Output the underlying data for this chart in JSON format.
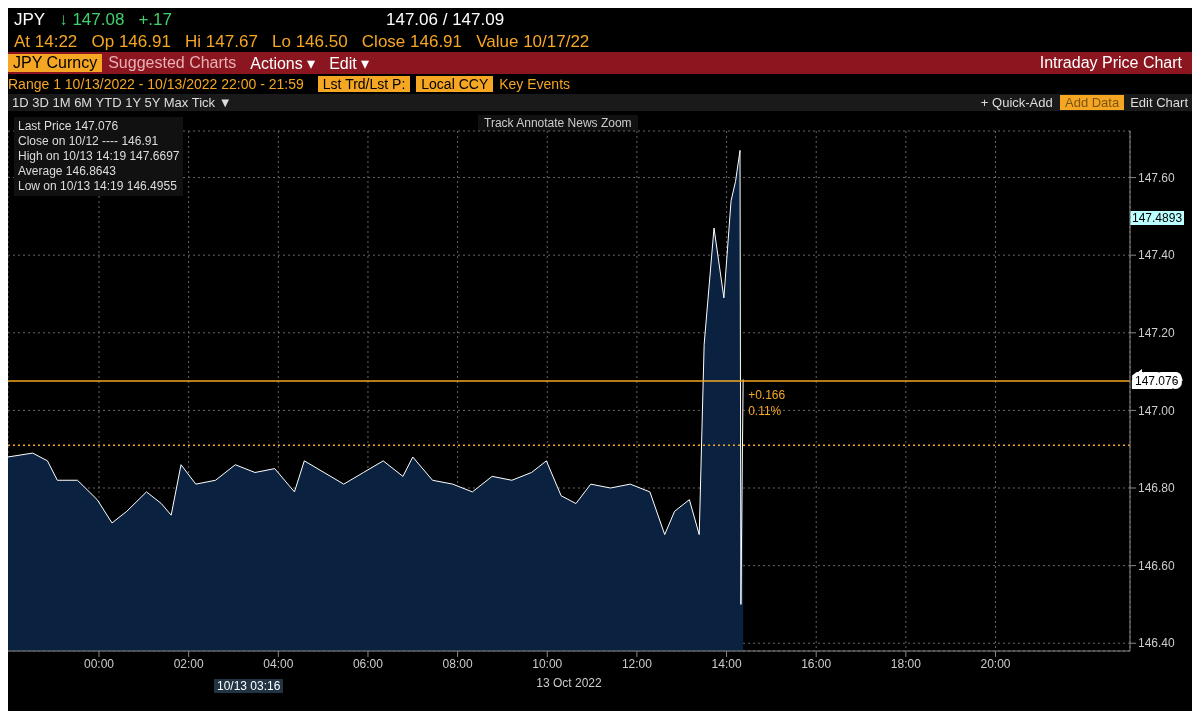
{
  "chart_data": {
    "type": "area",
    "title": "Intraday Price Chart",
    "xlabel": "13 Oct 2022",
    "x": [
      -2.03,
      -1.48,
      -1.15,
      -0.93,
      -0.48,
      -0.04,
      0.29,
      0.62,
      1.06,
      1.39,
      1.61,
      1.83,
      2.16,
      2.6,
      3.04,
      3.48,
      3.92,
      4.36,
      4.58,
      5.02,
      5.46,
      5.9,
      6.34,
      6.78,
      7.0,
      7.44,
      7.89,
      8.33,
      8.77,
      9.21,
      9.65,
      9.98,
      10.31,
      10.64,
      10.97,
      11.41,
      11.85,
      12.29,
      12.62,
      12.84,
      13.17,
      13.39,
      13.5,
      13.72,
      13.94,
      14.1,
      14.2,
      14.3,
      14.32,
      14.37
    ],
    "series": [
      {
        "name": "Last Price",
        "color": "#ffffff",
        "values": [
          146.88,
          146.89,
          146.87,
          146.82,
          146.82,
          146.77,
          146.71,
          146.74,
          146.79,
          146.76,
          146.73,
          146.86,
          146.81,
          146.82,
          146.86,
          146.84,
          146.85,
          146.79,
          146.87,
          146.84,
          146.81,
          146.84,
          146.87,
          146.83,
          146.88,
          146.82,
          146.81,
          146.79,
          146.83,
          146.82,
          146.84,
          146.87,
          146.78,
          146.76,
          146.81,
          146.8,
          146.81,
          146.79,
          146.68,
          146.74,
          146.77,
          146.68,
          147.17,
          147.47,
          147.29,
          147.54,
          147.59,
          147.67,
          146.5,
          147.08
        ]
      }
    ],
    "xlim": [
      -2.03,
      23
    ],
    "xticks": [
      {
        "value": 0,
        "label": "00:00"
      },
      {
        "value": 2,
        "label": "02:00"
      },
      {
        "value": 4,
        "label": "04:00"
      },
      {
        "value": 6,
        "label": "06:00"
      },
      {
        "value": 8,
        "label": "08:00"
      },
      {
        "value": 10,
        "label": "10:00"
      },
      {
        "value": 12,
        "label": "12:00"
      },
      {
        "value": 14,
        "label": "14:00"
      },
      {
        "value": 16,
        "label": "16:00"
      },
      {
        "value": 18,
        "label": "18:00"
      },
      {
        "value": 20,
        "label": "20:00"
      }
    ],
    "ylim": [
      146.38,
      147.72
    ],
    "yticks": [
      {
        "value": 146.4,
        "label": "146.40"
      },
      {
        "value": 146.6,
        "label": "146.60"
      },
      {
        "value": 146.8,
        "label": "146.80"
      },
      {
        "value": 147.0,
        "label": "147.00"
      },
      {
        "value": 147.2,
        "label": "147.20"
      },
      {
        "value": 147.4,
        "label": "147.40"
      },
      {
        "value": 147.6,
        "label": "147.60"
      }
    ],
    "grid": true,
    "ref_lines": [
      {
        "axis": "y",
        "value": 146.91,
        "color": "#f5a623",
        "line_style": "dotted"
      },
      {
        "axis": "y",
        "value": 147.076,
        "label": "147.076",
        "color": "#f5a623",
        "line_style": "solid"
      }
    ],
    "annotations": [
      "JPY",
      "↓ 147.08",
      "+.17",
      "147.06 / 147.09",
      "At 14:22",
      "Op 146.91",
      "Hi 147.67",
      "Lo 146.50",
      "Close 146.91",
      "Value 10/17/22",
      "JPY Curncy",
      "Suggested Charts",
      "Actions ▾",
      "Edit ▾",
      "Range 1 10/13/2022 - 10/13/2022 22:00 - 21:59",
      "Lst Trd/Lst P:",
      "Local CCY",
      "Key Events",
      "1D 3D 1M 6M YTD 1Y 5Y Max Tick ▼",
      "+ Quick-Add",
      "Add Data",
      "Edit Chart",
      "Track Annotate News Zoom",
      "147.076",
      "Close on 10/12 ---- 146.91",
      "High on 10/13 14:19 147.6697",
      "Average 146.8643",
      "Low on 10/13 14:19 146.4955",
      "147.4893",
      "10/13 03:16",
      {
        "text": "+0.166",
        "x": 14.37,
        "y": 147.04
      },
      {
        "text": "0.11%",
        "x": 14.37,
        "y": 147.0
      }
    ]
  }
}
